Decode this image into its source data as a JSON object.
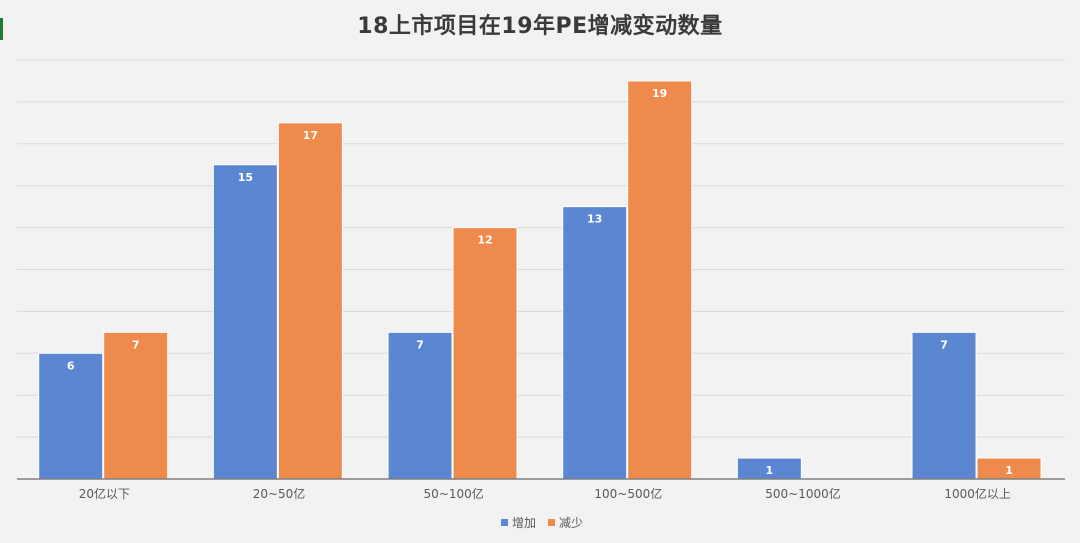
{
  "chart_data": {
    "type": "bar",
    "title": "18上市项目在19年PE增减变动数量",
    "categories": [
      "20亿以下",
      "20~50亿",
      "50~100亿",
      "100~500亿",
      "500~1000亿",
      "1000亿以上"
    ],
    "series": [
      {
        "name": "增加",
        "values": [
          6,
          15,
          7,
          13,
          1,
          7
        ],
        "color": "#5b87d2"
      },
      {
        "name": "减少",
        "values": [
          7,
          17,
          12,
          19,
          0,
          1
        ],
        "color": "#ee8a4c"
      }
    ],
    "ylim": [
      0,
      20
    ],
    "grid": true,
    "legend_position": "bottom",
    "xlabel": "",
    "ylabel": ""
  }
}
